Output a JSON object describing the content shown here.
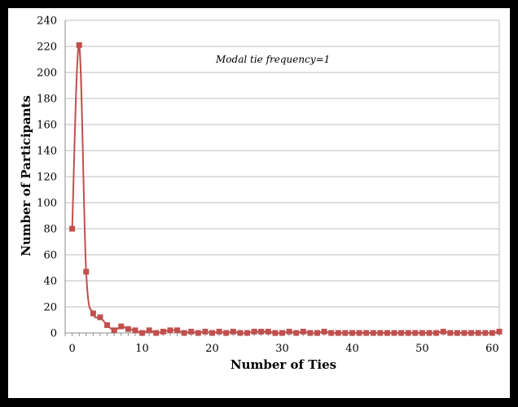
{
  "chart_data": {
    "type": "line",
    "title": "",
    "xlabel": "Number of Ties",
    "ylabel": "Number of Participants",
    "annotation": "Modal tie frequency=1",
    "xlim": [
      -1,
      61
    ],
    "ylim": [
      0,
      240
    ],
    "x_ticks": [
      0,
      10,
      20,
      30,
      40,
      50,
      60
    ],
    "y_ticks": [
      0,
      20,
      40,
      60,
      80,
      100,
      120,
      140,
      160,
      180,
      200,
      220,
      240
    ],
    "grid": true,
    "legend": "none",
    "series_color": "#c0504d",
    "series": [
      {
        "x": [
          0,
          1,
          2,
          3,
          4,
          5,
          6,
          7,
          8,
          9,
          10,
          11,
          12,
          13,
          14,
          15,
          16,
          17,
          18,
          19,
          20,
          21,
          22,
          23,
          24,
          25,
          26,
          27,
          28,
          29,
          30,
          31,
          32,
          33,
          34,
          35,
          36,
          37,
          38,
          39,
          40,
          41,
          42,
          43,
          44,
          45,
          46,
          47,
          48,
          49,
          50,
          51,
          52,
          53,
          54,
          55,
          56,
          57,
          58,
          59,
          60,
          61
        ],
        "values": [
          80,
          221,
          47,
          15,
          12,
          6,
          2,
          5,
          3,
          2,
          0,
          2,
          0,
          1,
          2,
          2,
          0,
          1,
          0,
          1,
          0,
          1,
          0,
          1,
          0,
          0,
          1,
          1,
          1,
          0,
          0,
          1,
          0,
          1,
          0,
          0,
          1,
          0,
          0,
          0,
          0,
          0,
          0,
          0,
          0,
          0,
          0,
          0,
          0,
          0,
          0,
          0,
          0,
          1,
          0,
          0,
          0,
          0,
          0,
          0,
          0,
          1
        ]
      }
    ]
  }
}
